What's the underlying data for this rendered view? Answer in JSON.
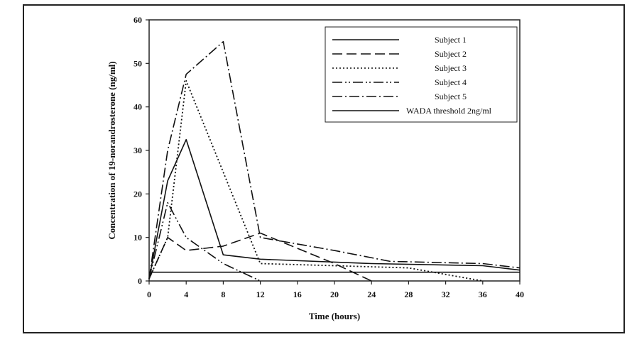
{
  "chart_data": {
    "type": "line",
    "title": "",
    "xlabel": "Time (hours)",
    "ylabel": "Concentration of 19-norandrosterone (ng/ml)",
    "xlim": [
      0,
      40
    ],
    "ylim": [
      0,
      60
    ],
    "xticks": [
      0,
      4,
      8,
      12,
      16,
      20,
      24,
      28,
      32,
      36,
      40
    ],
    "yticks": [
      0,
      10,
      20,
      30,
      40,
      50,
      60
    ],
    "grid": false,
    "legend_position": "top-right",
    "series": [
      {
        "name": "Subject 1",
        "dash": "solid",
        "color": "#111111",
        "x": [
          0,
          2,
          4,
          8,
          12,
          24,
          36,
          40
        ],
        "y": [
          0.5,
          23,
          32.5,
          6,
          5,
          4,
          3.5,
          2.5
        ]
      },
      {
        "name": "Subject 2",
        "dash": "dashed",
        "color": "#111111",
        "x": [
          0,
          2,
          4,
          8,
          12,
          20,
          24
        ],
        "y": [
          0.5,
          10,
          7,
          8,
          11,
          4,
          0
        ]
      },
      {
        "name": "Subject 3",
        "dash": "dotted",
        "color": "#111111",
        "x": [
          0,
          2,
          4,
          8,
          12,
          20,
          28,
          36
        ],
        "y": [
          0.5,
          10,
          46,
          25,
          4,
          3.5,
          3,
          0
        ]
      },
      {
        "name": "Subject 4",
        "dash": "dash-dot-dot",
        "color": "#111111",
        "x": [
          0,
          2,
          4,
          8,
          12
        ],
        "y": [
          0.5,
          18,
          10,
          4,
          0
        ]
      },
      {
        "name": "Subject 5",
        "dash": "dash-dot",
        "color": "#111111",
        "x": [
          0,
          2,
          4,
          8,
          12,
          20,
          26,
          36,
          40
        ],
        "y": [
          0.5,
          30,
          47.5,
          55,
          10,
          7,
          4.5,
          4,
          3
        ]
      },
      {
        "name": "WADA threshold 2ng/ml",
        "dash": "solid",
        "color": "#111111",
        "x": [
          0,
          40
        ],
        "y": [
          2,
          2
        ]
      }
    ]
  }
}
